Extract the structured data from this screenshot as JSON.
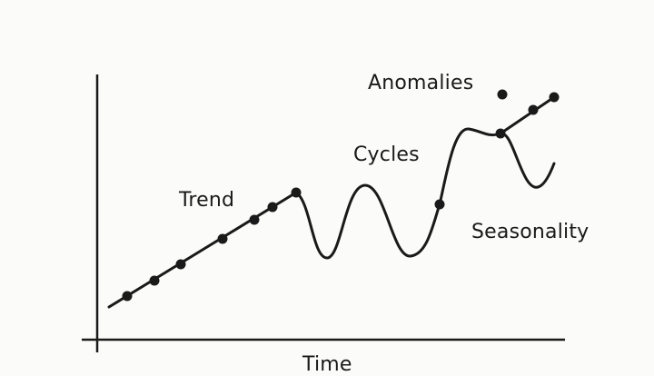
{
  "labels": {
    "anomalies": "Anomalies",
    "cycles": "Cycles",
    "trend": "Trend",
    "seasonality": "Seasonality",
    "x_axis": "Time"
  },
  "colors": {
    "background": "#fbfbfa",
    "ink": "#1a1a1a"
  }
}
